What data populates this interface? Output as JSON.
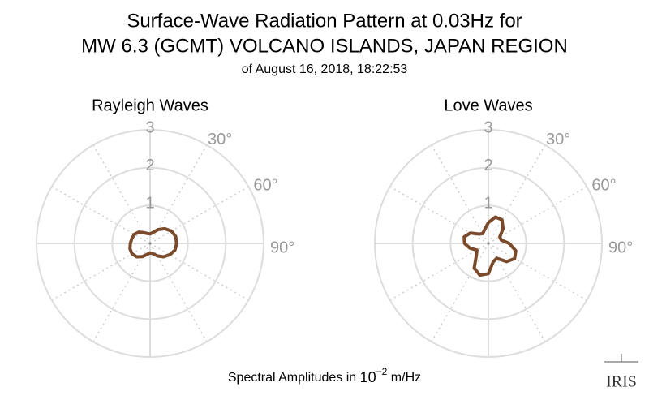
{
  "header": {
    "title_lines": [
      "Surface-Wave Radiation Pattern at 0.03Hz for",
      "MW 6.3 (GCMT) VOLCANO ISLANDS, JAPAN REGION"
    ],
    "subtitle": "of August 16, 2018, 18:22:53"
  },
  "footer": {
    "label": "Spectral Amplitudes in ",
    "base": "10",
    "exponent": "−2",
    "unit": " m/Hz"
  },
  "logo": "IRIS",
  "chart_data": [
    {
      "type": "polar",
      "title": "Rayleigh Waves",
      "color": "#7b4a2a",
      "theta": [
        0,
        15,
        30,
        45,
        60,
        75,
        90,
        105,
        120,
        135,
        150,
        165,
        180,
        195,
        210,
        225,
        240,
        255,
        270,
        285,
        300,
        315,
        330,
        345
      ],
      "values": [
        0.25,
        0.3,
        0.42,
        0.55,
        0.65,
        0.7,
        0.7,
        0.68,
        0.6,
        0.5,
        0.38,
        0.28,
        0.25,
        0.3,
        0.4,
        0.5,
        0.55,
        0.55,
        0.52,
        0.5,
        0.48,
        0.42,
        0.33,
        0.27
      ],
      "rlim": [
        0,
        3
      ],
      "rticks": [
        1,
        2,
        3
      ],
      "thetaticks": [
        {
          "value": 30,
          "label": "30°"
        },
        {
          "value": 60,
          "label": "60°"
        },
        {
          "value": 90,
          "label": "90°"
        }
      ]
    },
    {
      "type": "polar",
      "title": "Love Waves",
      "color": "#7b4a2a",
      "theta": [
        0,
        15,
        30,
        45,
        60,
        75,
        90,
        105,
        120,
        135,
        150,
        165,
        180,
        195,
        210,
        225,
        240,
        255,
        270,
        285,
        300,
        315,
        330,
        345
      ],
      "values": [
        0.55,
        0.72,
        0.72,
        0.55,
        0.35,
        0.35,
        0.55,
        0.75,
        0.8,
        0.68,
        0.45,
        0.5,
        0.8,
        0.87,
        0.75,
        0.45,
        0.35,
        0.5,
        0.63,
        0.66,
        0.55,
        0.35,
        0.3,
        0.38
      ],
      "rlim": [
        0,
        3
      ],
      "rticks": [
        1,
        2,
        3
      ],
      "thetaticks": [
        {
          "value": 30,
          "label": "30°"
        },
        {
          "value": 60,
          "label": "60°"
        },
        {
          "value": 90,
          "label": "90°"
        }
      ]
    }
  ]
}
